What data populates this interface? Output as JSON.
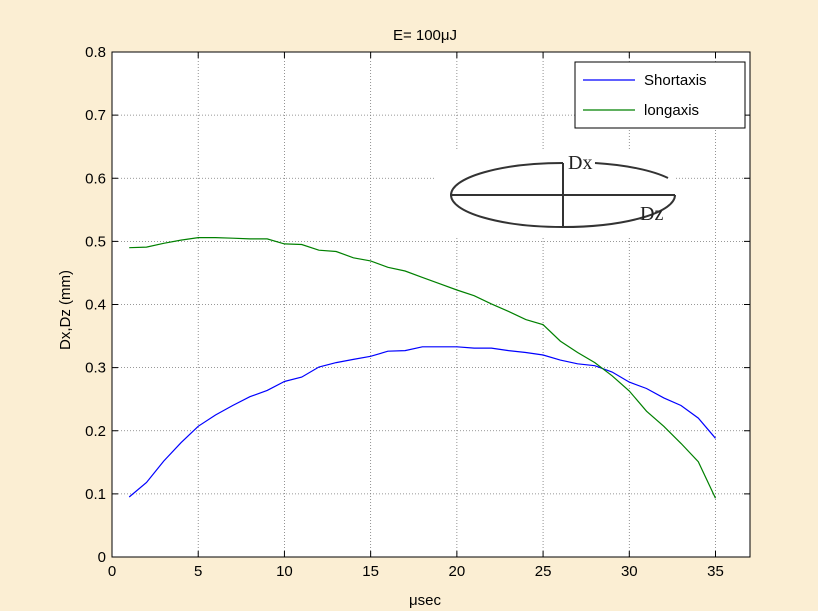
{
  "chart_data": {
    "type": "line",
    "title": "E= 100μJ",
    "xlabel": "μsec",
    "ylabel": "Dx,Dz (mm)",
    "xlim": [
      0,
      37
    ],
    "ylim": [
      0,
      0.8
    ],
    "xticks": [
      0,
      5,
      10,
      15,
      20,
      25,
      30,
      35
    ],
    "yticks": [
      0,
      0.1,
      0.2,
      0.3,
      0.4,
      0.5,
      0.6,
      0.7,
      0.8
    ],
    "xtick_labels": [
      "0",
      "5",
      "10",
      "15",
      "20",
      "25",
      "30",
      "35"
    ],
    "ytick_labels": [
      "0",
      "0.1",
      "0.2",
      "0.3",
      "0.4",
      "0.5",
      "0.6",
      "0.7",
      "0.8"
    ],
    "grid": true,
    "legend_position": "top-right",
    "x": [
      1,
      2,
      3,
      4,
      5,
      6,
      7,
      8,
      9,
      10,
      11,
      12,
      13,
      14,
      15,
      16,
      17,
      18,
      19,
      20,
      21,
      22,
      23,
      24,
      25,
      26,
      27,
      28,
      29,
      30,
      31,
      32,
      33,
      34,
      35
    ],
    "series": [
      {
        "name": "Shortaxis",
        "color": "#0000ff",
        "values": [
          0.095,
          0.118,
          0.152,
          0.181,
          0.207,
          0.225,
          0.24,
          0.254,
          0.264,
          0.278,
          0.285,
          0.301,
          0.308,
          0.313,
          0.318,
          0.326,
          0.327,
          0.333,
          0.333,
          0.333,
          0.331,
          0.331,
          0.327,
          0.324,
          0.32,
          0.312,
          0.306,
          0.303,
          0.293,
          0.277,
          0.267,
          0.252,
          0.24,
          0.22,
          0.188
        ]
      },
      {
        "name": "longaxis",
        "color": "#008000",
        "values": [
          0.49,
          0.491,
          0.497,
          0.502,
          0.506,
          0.506,
          0.505,
          0.504,
          0.504,
          0.496,
          0.495,
          0.486,
          0.484,
          0.474,
          0.469,
          0.459,
          0.453,
          0.443,
          0.433,
          0.423,
          0.414,
          0.401,
          0.389,
          0.376,
          0.368,
          0.342,
          0.324,
          0.308,
          0.287,
          0.263,
          0.231,
          0.207,
          0.18,
          0.151,
          0.093
        ]
      }
    ],
    "inset": {
      "labels": [
        "Dx",
        "Dz"
      ]
    }
  }
}
